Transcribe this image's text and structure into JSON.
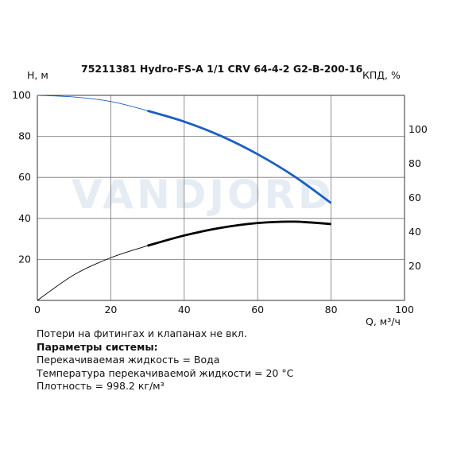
{
  "chart_data": {
    "type": "line",
    "title": "75211381 Hydro-FS-A 1/1 CRV 64-4-2 G2-B-200-16",
    "ylabel": "H, м",
    "y2label": "КПД, %",
    "xlabel": "Q, м³/ч",
    "watermark": "VANDJORD",
    "xlim": [
      0,
      100
    ],
    "ylim": [
      0,
      100
    ],
    "y2lim": [
      0,
      120
    ],
    "x_ticks": [
      0,
      20,
      40,
      60,
      80,
      100
    ],
    "y_ticks": [
      20,
      40,
      60,
      80,
      100
    ],
    "y2_ticks": [
      20,
      40,
      60,
      80,
      100
    ],
    "grid": true,
    "series": [
      {
        "axis": "left",
        "color": "#1a5fc4",
        "values": [
          [
            0,
            100
          ],
          [
            10,
            99.2
          ],
          [
            20,
            97
          ],
          [
            30,
            92.5
          ],
          [
            40,
            87.2
          ],
          [
            50,
            80.2
          ],
          [
            60,
            71.3
          ],
          [
            70,
            60.5
          ],
          [
            80,
            47.5
          ]
        ],
        "bold_from": 30
      },
      {
        "axis": "right",
        "color": "#000000",
        "values": [
          [
            0,
            0
          ],
          [
            10,
            15
          ],
          [
            20,
            25
          ],
          [
            30,
            32
          ],
          [
            40,
            38
          ],
          [
            50,
            42.5
          ],
          [
            60,
            45.3
          ],
          [
            70,
            46.1
          ],
          [
            80,
            44.7
          ]
        ],
        "bold_from": 30
      }
    ]
  },
  "info": {
    "line1": "Потери на фитингах и клапанах не вкл.",
    "heading": "Параметры системы:",
    "line2": "Перекачиваемая жидкость = Вода",
    "line3": "Температура перекачиваемой жидкости = 20 °C",
    "line4": "Плотность = 998.2 кг/м³"
  }
}
